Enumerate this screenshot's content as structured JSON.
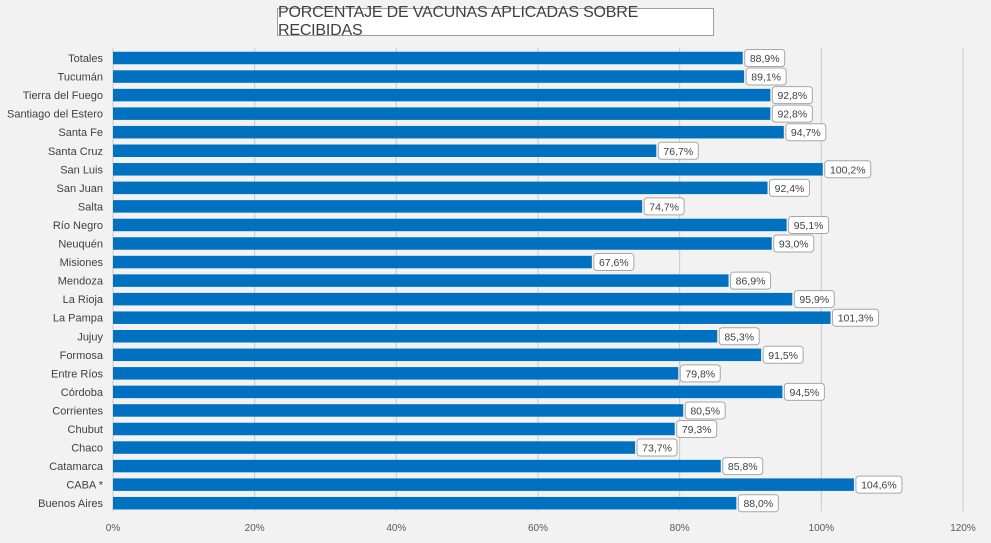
{
  "colors": {
    "background": "#f2f2f2",
    "plot_area": "#f2f2f2",
    "bar": "#0070c0",
    "gridline": "#c9c9c9",
    "label_box_border": "#a6a6a6",
    "label_box_fill": "#ffffff",
    "text": "#404040"
  },
  "chart_data": {
    "type": "bar",
    "orientation": "horizontal",
    "title": "PORCENTAJE DE VACUNAS APLICADAS SOBRE RECIBIDAS",
    "xlabel": "",
    "ylabel": "",
    "categories": [
      "Totales",
      "Tucumán",
      "Tierra del Fuego",
      "Santiago del Estero",
      "Santa Fe",
      "Santa Cruz",
      "San Luis",
      "San Juan",
      "Salta",
      "Río Negro",
      "Neuquén",
      "Misiones",
      "Mendoza",
      "La Rioja",
      "La Pampa",
      "Jujuy",
      "Formosa",
      "Entre Ríos",
      "Córdoba",
      "Corrientes",
      "Chubut",
      "Chaco",
      "Catamarca",
      "CABA *",
      "Buenos Aires"
    ],
    "values": [
      88.9,
      89.1,
      92.8,
      92.8,
      94.7,
      76.7,
      100.2,
      92.4,
      74.7,
      95.1,
      93.0,
      67.6,
      86.9,
      95.9,
      101.3,
      85.3,
      91.5,
      79.8,
      94.5,
      80.5,
      79.3,
      73.7,
      85.8,
      104.6,
      88.0
    ],
    "value_labels": [
      "88,9%",
      "89,1%",
      "92,8%",
      "92,8%",
      "94,7%",
      "76,7%",
      "100,2%",
      "92,4%",
      "74,7%",
      "95,1%",
      "93,0%",
      "67,6%",
      "86,9%",
      "95,9%",
      "101,3%",
      "85,3%",
      "91,5%",
      "79,8%",
      "94,5%",
      "80,5%",
      "79,3%",
      "73,7%",
      "85,8%",
      "104,6%",
      "88,0%"
    ],
    "xlim": [
      0,
      120
    ],
    "x_ticks": [
      0,
      20,
      40,
      60,
      80,
      100,
      120
    ],
    "x_tick_labels": [
      "0%",
      "20%",
      "40%",
      "60%",
      "80%",
      "100%",
      "120%"
    ],
    "grid": true,
    "legend": "none"
  }
}
